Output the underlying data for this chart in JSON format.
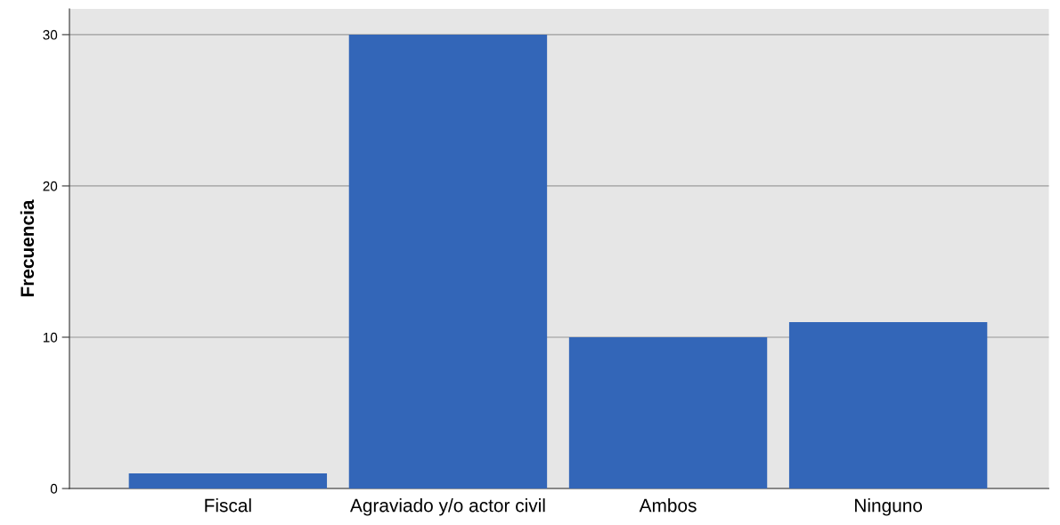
{
  "chart_data": {
    "type": "bar",
    "ylabel": "Frecuencia",
    "categories": [
      "Fiscal",
      "Agraviado y/o actor civil",
      "Ambos",
      "Ninguno"
    ],
    "values": [
      1,
      30,
      10,
      11
    ],
    "color": "#3366b8",
    "ylim": [
      0,
      31.7
    ],
    "yticks": [
      0,
      10,
      20,
      30
    ],
    "grid": "y",
    "legend": false
  }
}
